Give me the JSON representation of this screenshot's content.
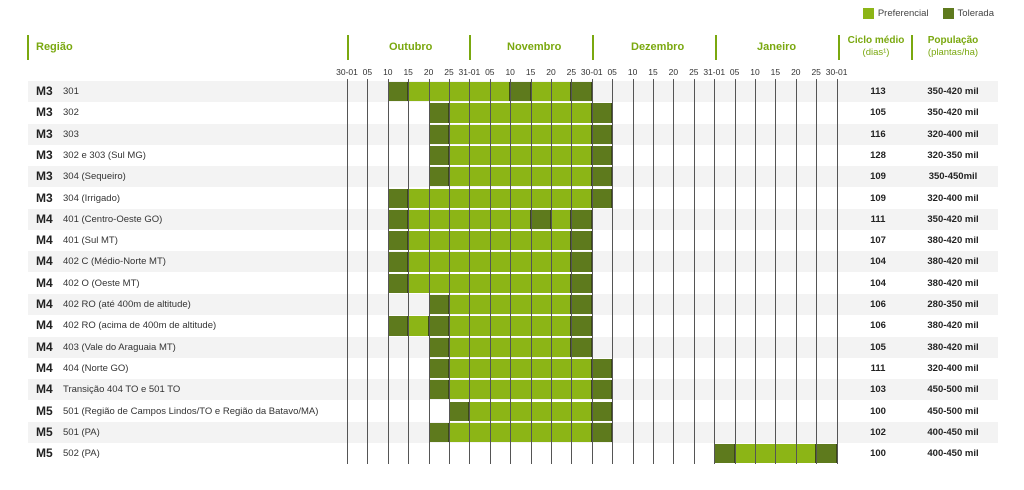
{
  "legend": {
    "preferred": {
      "label": "Preferencial",
      "color": "#8cb516"
    },
    "tolerated": {
      "label": "Tolerada",
      "color": "#5e7a1d"
    }
  },
  "headers": {
    "region": "Região",
    "months": [
      "Outubro",
      "Novembro",
      "Dezembro",
      "Janeiro"
    ],
    "cycle_title": "Ciclo médio",
    "cycle_sub": "(dias¹)",
    "population_title": "População",
    "population_sub": "(plantas/ha)"
  },
  "chart_data": {
    "type": "table",
    "x_ticks": [
      "30-01",
      "05",
      "10",
      "15",
      "20",
      "25",
      "31-01",
      "05",
      "10",
      "15",
      "20",
      "25",
      "30-01",
      "05",
      "10",
      "15",
      "20",
      "25",
      "31-01",
      "05",
      "10",
      "15",
      "20",
      "25",
      "30-01"
    ],
    "rows": [
      {
        "code": "M3",
        "region": "301",
        "cycle": "113",
        "population": "350-420 mil",
        "periods": [
          {
            "start": 2,
            "end": 3,
            "type": "T"
          },
          {
            "start": 3,
            "end": 8,
            "type": "P"
          },
          {
            "start": 8,
            "end": 9,
            "type": "T"
          },
          {
            "start": 9,
            "end": 11,
            "type": "P"
          },
          {
            "start": 11,
            "end": 12,
            "type": "T"
          }
        ]
      },
      {
        "code": "M3",
        "region": "302",
        "cycle": "105",
        "population": "350-420 mil",
        "periods": [
          {
            "start": 4,
            "end": 5,
            "type": "T"
          },
          {
            "start": 5,
            "end": 12,
            "type": "P"
          },
          {
            "start": 12,
            "end": 13,
            "type": "T"
          }
        ]
      },
      {
        "code": "M3",
        "region": "303",
        "cycle": "116",
        "population": "320-400 mil",
        "periods": [
          {
            "start": 4,
            "end": 5,
            "type": "T"
          },
          {
            "start": 5,
            "end": 12,
            "type": "P"
          },
          {
            "start": 12,
            "end": 13,
            "type": "T"
          }
        ]
      },
      {
        "code": "M3",
        "region": "302 e 303 (Sul MG)",
        "cycle": "128",
        "population": "320-350 mil",
        "periods": [
          {
            "start": 4,
            "end": 5,
            "type": "T"
          },
          {
            "start": 5,
            "end": 12,
            "type": "P"
          },
          {
            "start": 12,
            "end": 13,
            "type": "T"
          }
        ]
      },
      {
        "code": "M3",
        "region": "304 (Sequeiro)",
        "cycle": "109",
        "population": "350-450mil",
        "periods": [
          {
            "start": 4,
            "end": 5,
            "type": "T"
          },
          {
            "start": 5,
            "end": 12,
            "type": "P"
          },
          {
            "start": 12,
            "end": 13,
            "type": "T"
          }
        ]
      },
      {
        "code": "M3",
        "region": "304 (Irrigado)",
        "cycle": "109",
        "population": "320-400 mil",
        "periods": [
          {
            "start": 2,
            "end": 3,
            "type": "T"
          },
          {
            "start": 3,
            "end": 12,
            "type": "P"
          },
          {
            "start": 12,
            "end": 13,
            "type": "T"
          }
        ]
      },
      {
        "code": "M4",
        "region": "401 (Centro-Oeste GO)",
        "cycle": "111",
        "population": "350-420 mil",
        "periods": [
          {
            "start": 2,
            "end": 3,
            "type": "T"
          },
          {
            "start": 3,
            "end": 9,
            "type": "P"
          },
          {
            "start": 9,
            "end": 10,
            "type": "T"
          },
          {
            "start": 10,
            "end": 11,
            "type": "P"
          },
          {
            "start": 11,
            "end": 12,
            "type": "T"
          }
        ]
      },
      {
        "code": "M4",
        "region": "401 (Sul MT)",
        "cycle": "107",
        "population": "380-420 mil",
        "periods": [
          {
            "start": 2,
            "end": 3,
            "type": "T"
          },
          {
            "start": 3,
            "end": 11,
            "type": "P"
          },
          {
            "start": 11,
            "end": 12,
            "type": "T"
          }
        ]
      },
      {
        "code": "M4",
        "region": "402 C (Médio-Norte MT)",
        "cycle": "104",
        "population": "380-420 mil",
        "periods": [
          {
            "start": 2,
            "end": 3,
            "type": "T"
          },
          {
            "start": 3,
            "end": 11,
            "type": "P"
          },
          {
            "start": 11,
            "end": 12,
            "type": "T"
          }
        ]
      },
      {
        "code": "M4",
        "region": "402 O (Oeste MT)",
        "cycle": "104",
        "population": "380-420 mil",
        "periods": [
          {
            "start": 2,
            "end": 3,
            "type": "T"
          },
          {
            "start": 3,
            "end": 11,
            "type": "P"
          },
          {
            "start": 11,
            "end": 12,
            "type": "T"
          }
        ]
      },
      {
        "code": "M4",
        "region": "402 RO (até 400m de altitude)",
        "cycle": "106",
        "population": "280-350 mil",
        "periods": [
          {
            "start": 4,
            "end": 5,
            "type": "T"
          },
          {
            "start": 5,
            "end": 11,
            "type": "P"
          },
          {
            "start": 11,
            "end": 12,
            "type": "T"
          }
        ]
      },
      {
        "code": "M4",
        "region": "402 RO (acima de 400m de altitude)",
        "cycle": "106",
        "population": "380-420 mil",
        "periods": [
          {
            "start": 2,
            "end": 3,
            "type": "T"
          },
          {
            "start": 3,
            "end": 4,
            "type": "P"
          },
          {
            "start": 4,
            "end": 5,
            "type": "T"
          },
          {
            "start": 5,
            "end": 11,
            "type": "P"
          },
          {
            "start": 11,
            "end": 12,
            "type": "T"
          }
        ]
      },
      {
        "code": "M4",
        "region": "403 (Vale do Araguaia MT)",
        "cycle": "105",
        "population": "380-420 mil",
        "periods": [
          {
            "start": 4,
            "end": 5,
            "type": "T"
          },
          {
            "start": 5,
            "end": 11,
            "type": "P"
          },
          {
            "start": 11,
            "end": 12,
            "type": "T"
          }
        ]
      },
      {
        "code": "M4",
        "region": "404 (Norte GO)",
        "cycle": "111",
        "population": "320-400 mil",
        "periods": [
          {
            "start": 4,
            "end": 5,
            "type": "T"
          },
          {
            "start": 5,
            "end": 12,
            "type": "P"
          },
          {
            "start": 12,
            "end": 13,
            "type": "T"
          }
        ]
      },
      {
        "code": "M4",
        "region": "Transição 404 TO e 501 TO",
        "cycle": "103",
        "population": "450-500 mil",
        "periods": [
          {
            "start": 4,
            "end": 5,
            "type": "T"
          },
          {
            "start": 5,
            "end": 12,
            "type": "P"
          },
          {
            "start": 12,
            "end": 13,
            "type": "T"
          }
        ]
      },
      {
        "code": "M5",
        "region": "501 (Região de Campos Lindos/TO e Região da Batavo/MA)",
        "cycle": "100",
        "population": "450-500 mil",
        "periods": [
          {
            "start": 5,
            "end": 6,
            "type": "T"
          },
          {
            "start": 6,
            "end": 12,
            "type": "P"
          },
          {
            "start": 12,
            "end": 13,
            "type": "T"
          }
        ]
      },
      {
        "code": "M5",
        "region": "501 (PA)",
        "cycle": "102",
        "population": "400-450 mil",
        "periods": [
          {
            "start": 4,
            "end": 5,
            "type": "T"
          },
          {
            "start": 5,
            "end": 12,
            "type": "P"
          },
          {
            "start": 12,
            "end": 13,
            "type": "T"
          }
        ]
      },
      {
        "code": "M5",
        "region": "502 (PA)",
        "cycle": "100",
        "population": "400-450 mil",
        "periods": [
          {
            "start": 18,
            "end": 19,
            "type": "T"
          },
          {
            "start": 19,
            "end": 23,
            "type": "P"
          },
          {
            "start": 23,
            "end": 24,
            "type": "T"
          }
        ]
      }
    ]
  }
}
